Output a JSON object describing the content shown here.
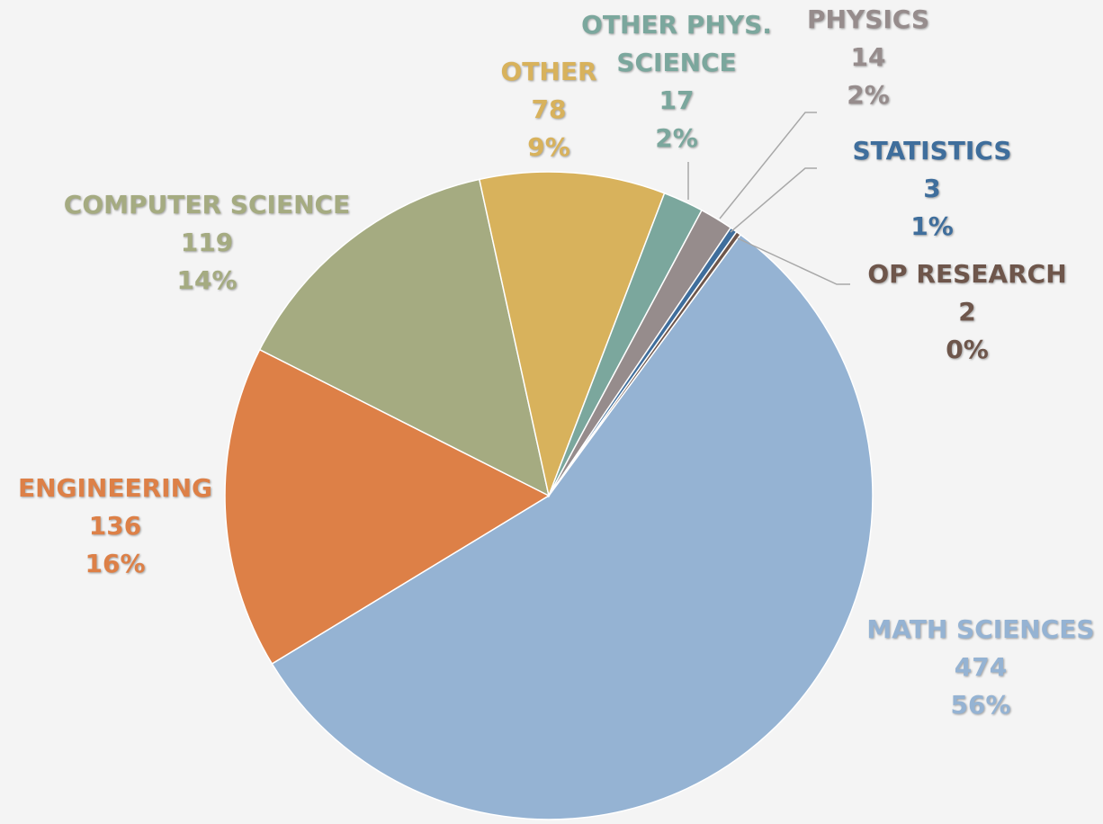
{
  "chart_data": {
    "type": "pie",
    "categories": [
      "MATH SCIENCES",
      "ENGINEERING",
      "COMPUTER SCIENCE",
      "OTHER",
      "OTHER PHYS. SCIENCE",
      "PHYSICS",
      "STATISTICS",
      "OP RESEARCH"
    ],
    "values": [
      474,
      136,
      119,
      78,
      17,
      14,
      3,
      2
    ],
    "percentages": [
      {
        "value": 56,
        "label": "56%"
      },
      {
        "value": 16,
        "label": "16%"
      },
      {
        "value": 14,
        "label": "14%"
      },
      {
        "value": 9,
        "label": "9%"
      },
      {
        "value": 2,
        "label": "2%"
      },
      {
        "value": 2,
        "label": "2%"
      },
      {
        "value": 1,
        "label": "1%"
      },
      {
        "value": 0,
        "label": "0%"
      }
    ],
    "colors": [
      "#95b3d3",
      "#dd8047",
      "#a5ab81",
      "#d8b25c",
      "#7ba79d",
      "#968c8c",
      "#3f6e9c",
      "#6e564b"
    ]
  }
}
